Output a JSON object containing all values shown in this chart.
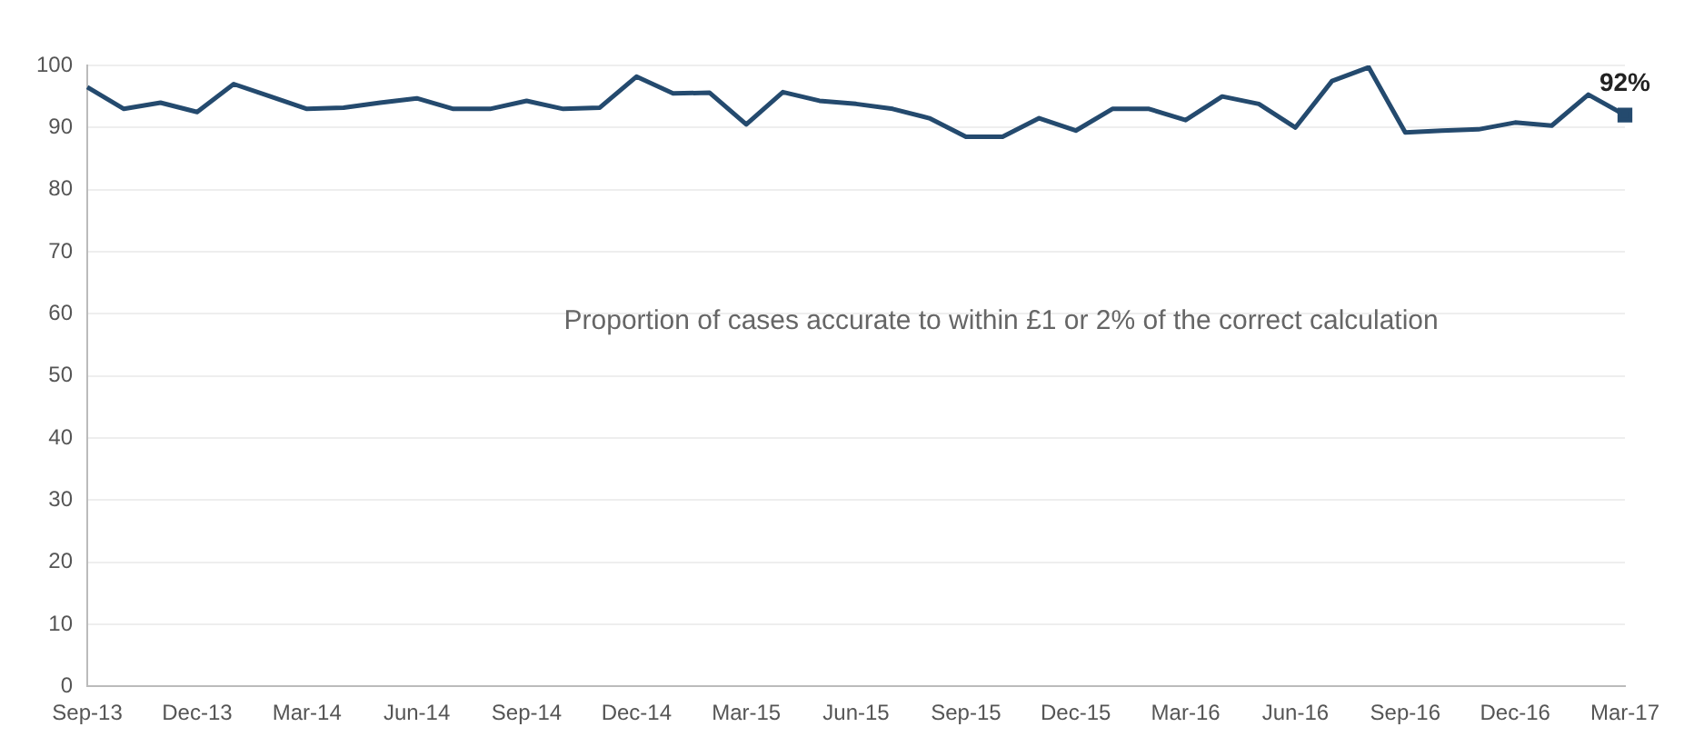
{
  "chart_data": {
    "type": "line",
    "categories": [
      "Sep-13",
      null,
      null,
      "Dec-13",
      null,
      null,
      "Mar-14",
      null,
      null,
      "Jun-14",
      null,
      null,
      "Sep-14",
      null,
      null,
      "Dec-14",
      null,
      null,
      "Mar-15",
      null,
      null,
      "Jun-15",
      null,
      null,
      "Sep-15",
      null,
      null,
      "Dec-15",
      null,
      null,
      "Mar-16",
      null,
      null,
      "Jun-16",
      null,
      null,
      "Sep-16",
      null,
      null,
      "Dec-16",
      null,
      null,
      "Mar-17"
    ],
    "series": [
      {
        "color": "#244a6e",
        "values": [
          96.5,
          93,
          94,
          92.5,
          97,
          95,
          93,
          93.2,
          94,
          94.7,
          93,
          93,
          94.3,
          93,
          93.2,
          98.2,
          95.5,
          95.6,
          90.5,
          95.7,
          94.3,
          93.8,
          93,
          91.5,
          88.5,
          88.5,
          91.5,
          89.5,
          93,
          93,
          91.2,
          95,
          93.8,
          90,
          97.5,
          99.7,
          89.2,
          89.5,
          89.7,
          90.8,
          90.3,
          95.3,
          92
        ],
        "value_labels": [
          null,
          null,
          null,
          null,
          null,
          null,
          null,
          null,
          null,
          null,
          null,
          null,
          null,
          null,
          null,
          null,
          null,
          null,
          null,
          null,
          null,
          null,
          null,
          null,
          null,
          null,
          null,
          null,
          null,
          null,
          null,
          null,
          null,
          null,
          null,
          null,
          null,
          null,
          null,
          null,
          null,
          null,
          "92%"
        ]
      }
    ],
    "ylim": [
      0,
      100
    ],
    "yticks": [
      0,
      10,
      20,
      30,
      40,
      50,
      60,
      70,
      80,
      90,
      100
    ],
    "grid": "y",
    "legend": false,
    "annotations": [
      "Proportion of cases accurate to within £1 or 2% of the correct calculation"
    ]
  }
}
